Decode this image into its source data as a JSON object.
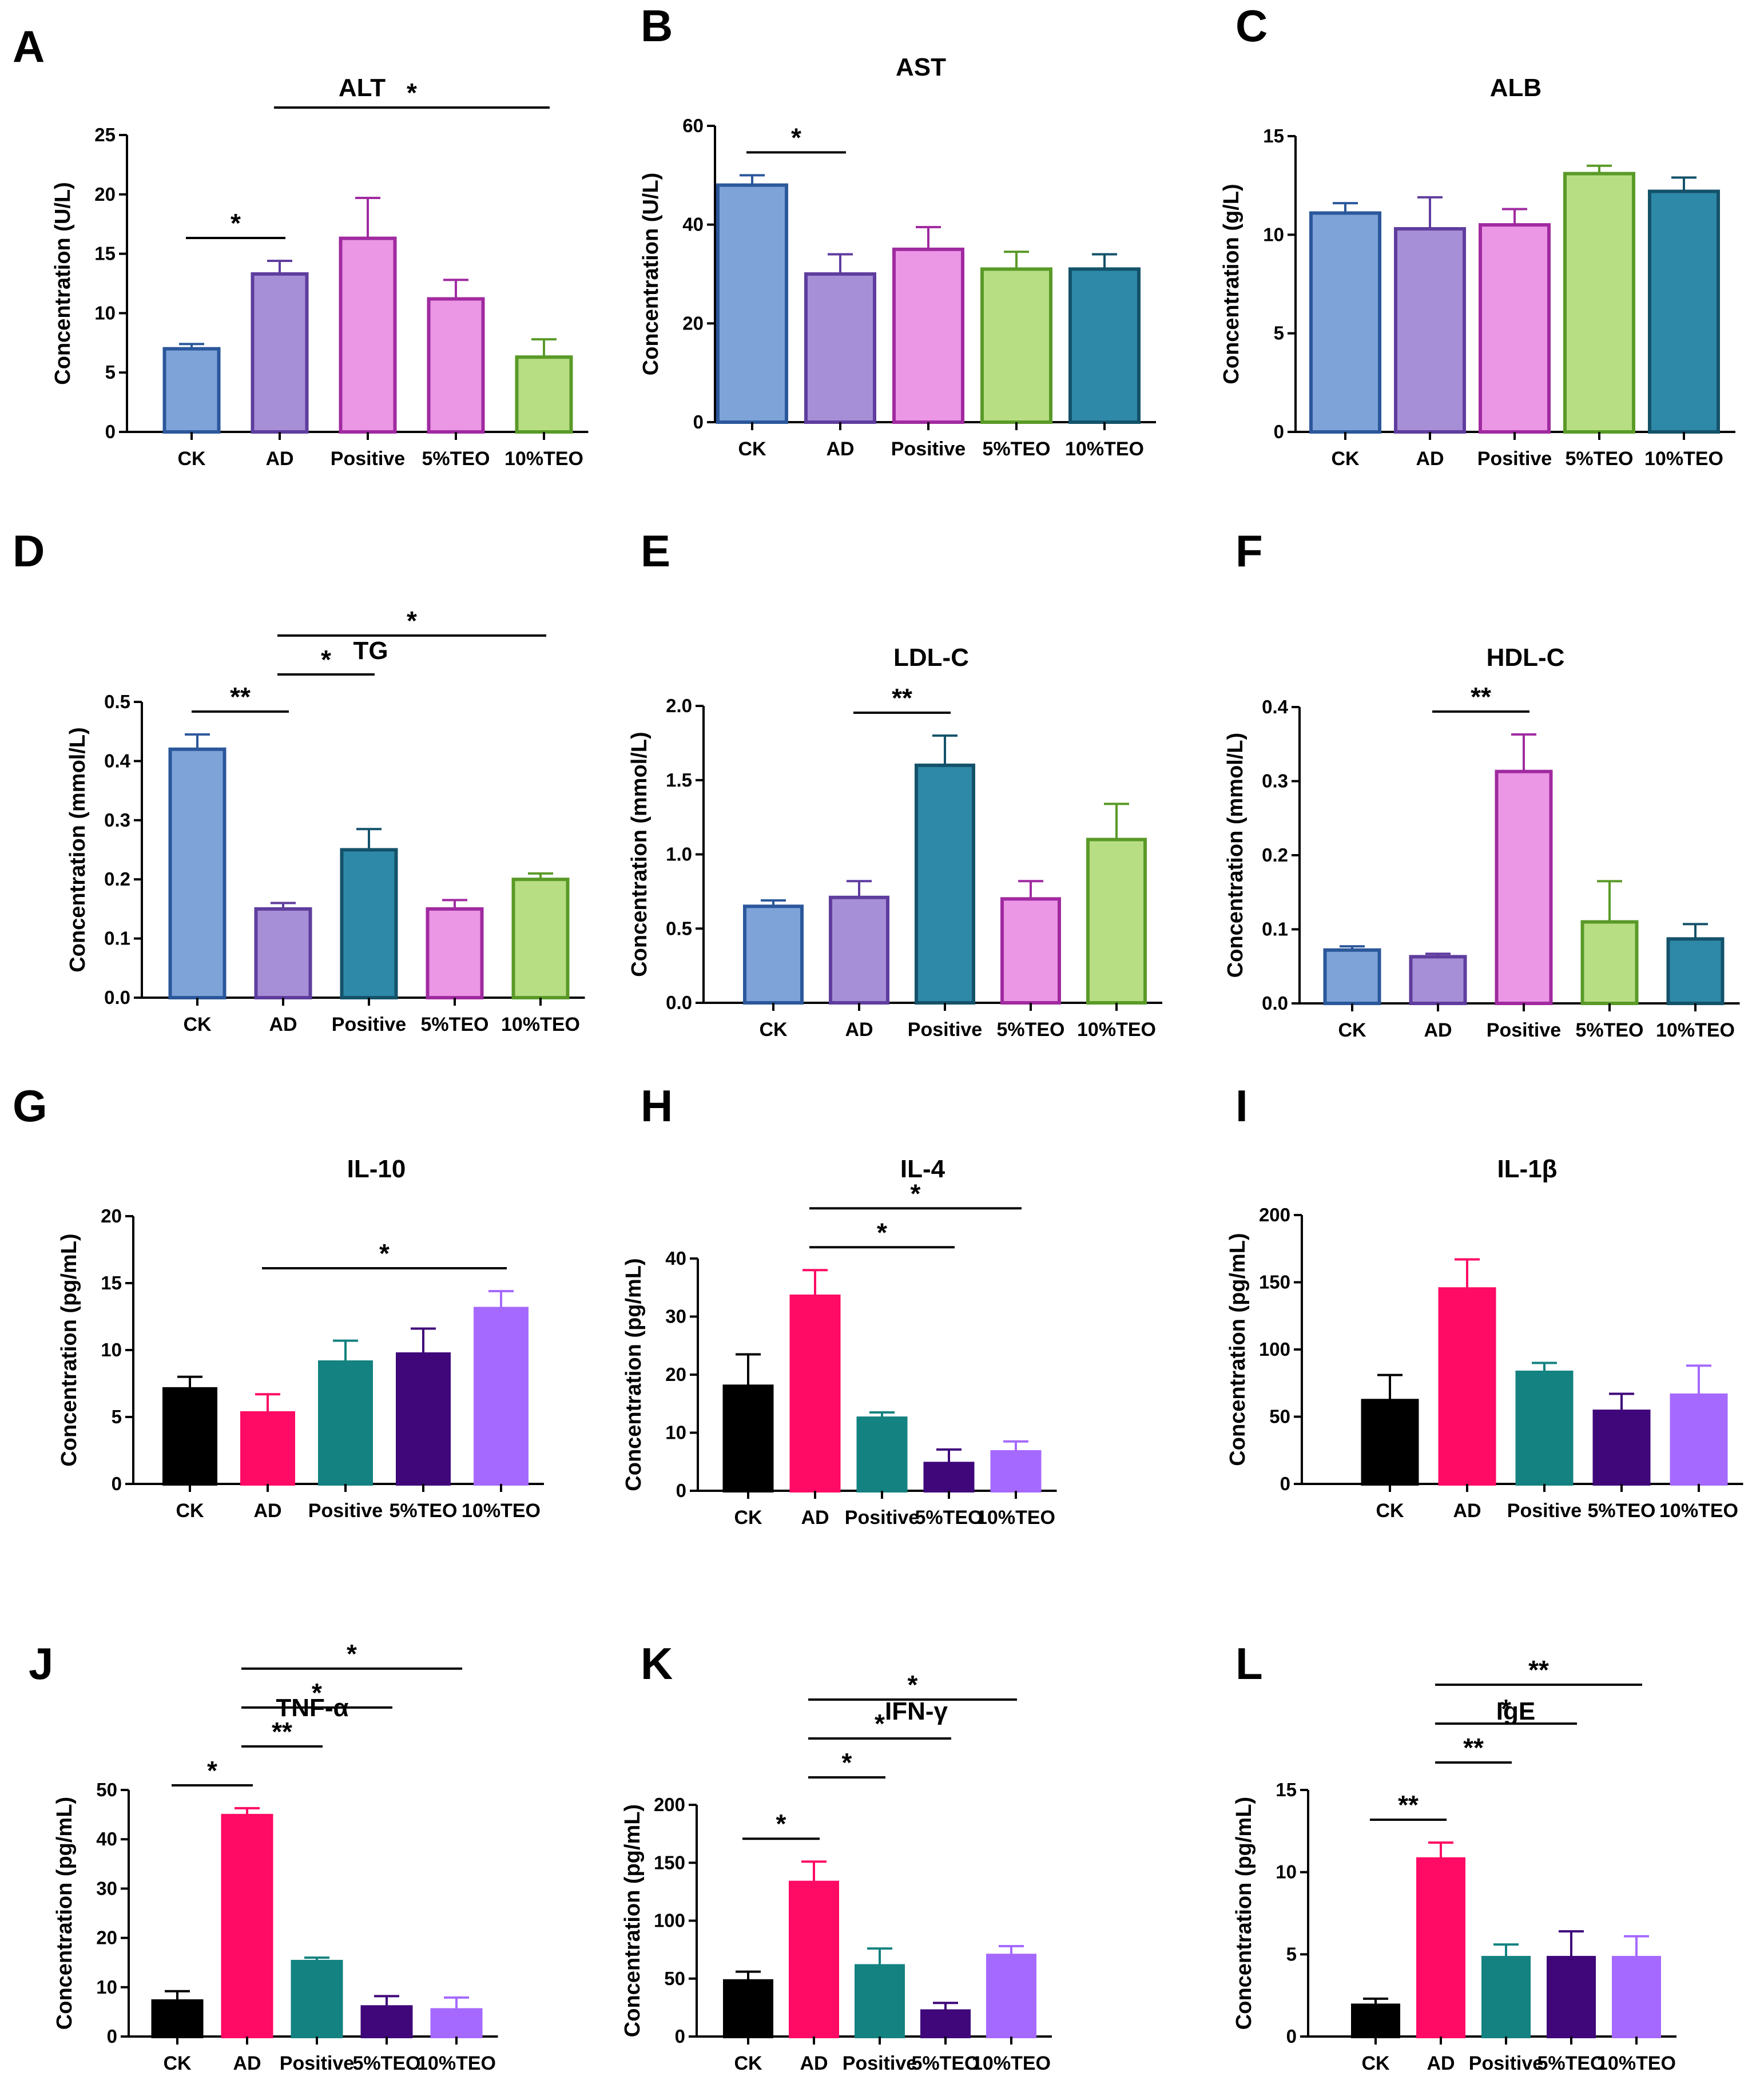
{
  "categories": [
    "CK",
    "AD",
    "Positive",
    "5%TEO",
    "10%TEO"
  ],
  "chart_data": [
    {
      "panel": "A",
      "type": "bar",
      "title": "ALT",
      "ylabel": "Concentration (U/L)",
      "ylim": [
        0,
        25
      ],
      "yticks": [
        0,
        5,
        10,
        15,
        20,
        25
      ],
      "categories": [
        "CK",
        "AD",
        "Positive",
        "5%TEO",
        "10%TEO"
      ],
      "values": [
        7.0,
        13.3,
        16.3,
        11.2,
        6.3
      ],
      "errors": [
        0.4,
        1.1,
        3.4,
        1.6,
        1.5
      ],
      "colors": [
        "#7ea3d9",
        "#a68fd6",
        "#ec96e6",
        "#ec96e6",
        "#b8de84"
      ],
      "strokes": [
        "#2b579b",
        "#5f3d9e",
        "#a02aa0",
        "#a02aa0",
        "#5a9a28"
      ],
      "significance": [
        {
          "from": 0,
          "to": 1,
          "label": "*"
        },
        {
          "from": 1,
          "to": 4,
          "label": "*"
        }
      ]
    },
    {
      "panel": "B",
      "type": "bar",
      "title": "AST",
      "ylabel": "Concentration (U/L)",
      "ylim": [
        0,
        60
      ],
      "yticks": [
        0,
        20,
        40,
        60
      ],
      "categories": [
        "CK",
        "AD",
        "Positive",
        "5%TEO",
        "10%TEO"
      ],
      "values": [
        48,
        30,
        35,
        31,
        31
      ],
      "errors": [
        2,
        4,
        4.5,
        3.5,
        3
      ],
      "colors": [
        "#7ea3d9",
        "#a68fd6",
        "#ec96e6",
        "#b8de84",
        "#2e89a8"
      ],
      "strokes": [
        "#2b579b",
        "#5f3d9e",
        "#a02aa0",
        "#5a9a28",
        "#14526a"
      ],
      "significance": [
        {
          "from": 0,
          "to": 1,
          "label": "*"
        }
      ]
    },
    {
      "panel": "C",
      "type": "bar",
      "title": "ALB",
      "ylabel": "Concentration (g/L)",
      "ylim": [
        0,
        15
      ],
      "yticks": [
        0,
        5,
        10,
        15
      ],
      "categories": [
        "CK",
        "AD",
        "Positive",
        "5%TEO",
        "10%TEO"
      ],
      "values": [
        11.1,
        10.3,
        10.5,
        13.1,
        12.2
      ],
      "errors": [
        0.5,
        1.6,
        0.8,
        0.4,
        0.7
      ],
      "colors": [
        "#7ea3d9",
        "#a68fd6",
        "#ec96e6",
        "#b8de84",
        "#2e89a8"
      ],
      "strokes": [
        "#2b579b",
        "#5f3d9e",
        "#a02aa0",
        "#5a9a28",
        "#14526a"
      ],
      "significance": []
    },
    {
      "panel": "D",
      "type": "bar",
      "title": "TG",
      "ylabel": "Concentration (mmol/L)",
      "ylim": [
        0,
        0.5
      ],
      "yticks": [
        "0.0",
        "0.1",
        "0.2",
        "0.3",
        "0.4",
        "0.5"
      ],
      "categories": [
        "CK",
        "AD",
        "Positive",
        "5%TEO",
        "10%TEO"
      ],
      "values": [
        0.42,
        0.15,
        0.25,
        0.15,
        0.2
      ],
      "errors": [
        0.025,
        0.01,
        0.035,
        0.015,
        0.01
      ],
      "colors": [
        "#7ea3d9",
        "#a68fd6",
        "#2e89a8",
        "#ec96e6",
        "#b8de84"
      ],
      "strokes": [
        "#2b579b",
        "#5f3d9e",
        "#14526a",
        "#a02aa0",
        "#5a9a28"
      ],
      "significance": [
        {
          "from": 0,
          "to": 1,
          "label": "**"
        },
        {
          "from": 1,
          "to": 4,
          "label": "*"
        },
        {
          "from": 1,
          "to": 2,
          "label": "*"
        }
      ]
    },
    {
      "panel": "E",
      "type": "bar",
      "title": "LDL-C",
      "ylabel": "Concentration (mmol/L)",
      "ylim": [
        0,
        2.0
      ],
      "yticks": [
        "0.0",
        "0.5",
        "1.0",
        "1.5",
        "2.0"
      ],
      "categories": [
        "CK",
        "AD",
        "Positive",
        "5%TEO",
        "10%TEO"
      ],
      "values": [
        0.65,
        0.71,
        1.6,
        0.7,
        1.1
      ],
      "errors": [
        0.04,
        0.11,
        0.2,
        0.12,
        0.24
      ],
      "colors": [
        "#7ea3d9",
        "#a68fd6",
        "#2e89a8",
        "#ec96e6",
        "#b8de84"
      ],
      "strokes": [
        "#2b579b",
        "#5f3d9e",
        "#14526a",
        "#a02aa0",
        "#5a9a28"
      ],
      "significance": [
        {
          "from": 1,
          "to": 2,
          "label": "**"
        }
      ]
    },
    {
      "panel": "F",
      "type": "bar",
      "title": "HDL-C",
      "ylabel": "Concentration (mmol/L)",
      "ylim": [
        0,
        0.4
      ],
      "yticks": [
        "0.0",
        "0.1",
        "0.2",
        "0.3",
        "0.4"
      ],
      "categories": [
        "CK",
        "AD",
        "Positive",
        "5%TEO",
        "10%TEO"
      ],
      "values": [
        0.072,
        0.063,
        0.313,
        0.11,
        0.087
      ],
      "errors": [
        0.005,
        0.004,
        0.05,
        0.055,
        0.02
      ],
      "colors": [
        "#7ea3d9",
        "#a68fd6",
        "#ec96e6",
        "#b8de84",
        "#2e89a8"
      ],
      "strokes": [
        "#2b579b",
        "#5f3d9e",
        "#a02aa0",
        "#5a9a28",
        "#14526a"
      ],
      "significance": [
        {
          "from": 1,
          "to": 2,
          "label": "**"
        }
      ]
    },
    {
      "panel": "G",
      "type": "bar",
      "title": "IL-10",
      "ylabel": "Concentration (pg/mL)",
      "ylim": [
        0,
        20
      ],
      "yticks": [
        0,
        5,
        10,
        15,
        20
      ],
      "categories": [
        "CK",
        "AD",
        "Positive",
        "5%TEO",
        "10%TEO"
      ],
      "values": [
        7.1,
        5.3,
        9.1,
        9.7,
        13.1
      ],
      "errors": [
        0.9,
        1.4,
        1.6,
        1.9,
        1.3
      ],
      "colors": [
        "#000000",
        "#ff0a64",
        "#138280",
        "#3f077a",
        "#a569ff"
      ],
      "strokes": [
        "#000000",
        "#ff0a64",
        "#138280",
        "#3f077a",
        "#a569ff"
      ],
      "significance": [
        {
          "from": 1,
          "to": 4,
          "label": "*"
        }
      ]
    },
    {
      "panel": "H",
      "type": "bar",
      "title": "IL-4",
      "ylabel": "Concentration (pg/mL)",
      "ylim": [
        0,
        40
      ],
      "yticks": [
        0,
        10,
        20,
        30,
        40
      ],
      "categories": [
        "CK",
        "AD",
        "Positive",
        "5%TEO",
        "10%TEO"
      ],
      "values": [
        18,
        33.5,
        12.5,
        4.7,
        6.7
      ],
      "errors": [
        5.5,
        4.5,
        1,
        2.4,
        1.8
      ],
      "colors": [
        "#000000",
        "#ff0a64",
        "#138280",
        "#3f077a",
        "#a569ff"
      ],
      "strokes": [
        "#000000",
        "#ff0a64",
        "#138280",
        "#3f077a",
        "#a569ff"
      ],
      "significance": [
        {
          "from": 1,
          "to": 3,
          "label": "*"
        },
        {
          "from": 1,
          "to": 4,
          "label": "*"
        }
      ]
    },
    {
      "panel": "I",
      "type": "bar",
      "title": "IL-1β",
      "ylabel": "Concentration (pg/mL)",
      "ylim": [
        0,
        200
      ],
      "yticks": [
        0,
        50,
        100,
        150,
        200
      ],
      "categories": [
        "CK",
        "AD",
        "Positive",
        "5%TEO",
        "10%TEO"
      ],
      "values": [
        62,
        145,
        83,
        54,
        66
      ],
      "errors": [
        19,
        22,
        7,
        13,
        22
      ],
      "colors": [
        "#000000",
        "#ff0a64",
        "#138280",
        "#3f077a",
        "#a569ff"
      ],
      "strokes": [
        "#000000",
        "#ff0a64",
        "#138280",
        "#3f077a",
        "#a569ff"
      ],
      "significance": []
    },
    {
      "panel": "J",
      "type": "bar",
      "title": "TNF-α",
      "ylabel": "Concentration (pg/mL)",
      "ylim": [
        0,
        50
      ],
      "yticks": [
        0,
        10,
        20,
        30,
        40,
        50
      ],
      "categories": [
        "CK",
        "AD",
        "Positive",
        "5%TEO",
        "10%TEO"
      ],
      "values": [
        7.2,
        44.8,
        15.2,
        6.0,
        5.4
      ],
      "errors": [
        2,
        1.5,
        0.8,
        2.2,
        2.5
      ],
      "colors": [
        "#000000",
        "#ff0a64",
        "#138280",
        "#3f077a",
        "#a569ff"
      ],
      "strokes": [
        "#000000",
        "#ff0a64",
        "#138280",
        "#3f077a",
        "#a569ff"
      ],
      "significance": [
        {
          "from": 0,
          "to": 1,
          "label": "*"
        },
        {
          "from": 1,
          "to": 2,
          "label": "**"
        },
        {
          "from": 1,
          "to": 3,
          "label": "*"
        },
        {
          "from": 1,
          "to": 4,
          "label": "*"
        }
      ]
    },
    {
      "panel": "K",
      "type": "bar",
      "title": "IFN-γ",
      "ylabel": "Concentration (pg/mL)",
      "ylim": [
        0,
        200
      ],
      "yticks": [
        0,
        50,
        100,
        150,
        200
      ],
      "categories": [
        "CK",
        "AD",
        "Positive",
        "5%TEO",
        "10%TEO"
      ],
      "values": [
        48,
        133,
        61,
        22,
        70
      ],
      "errors": [
        8,
        18,
        15,
        7,
        8
      ],
      "colors": [
        "#000000",
        "#ff0a64",
        "#138280",
        "#3f077a",
        "#a569ff"
      ],
      "strokes": [
        "#000000",
        "#ff0a64",
        "#138280",
        "#3f077a",
        "#a569ff"
      ],
      "significance": [
        {
          "from": 0,
          "to": 1,
          "label": "*"
        },
        {
          "from": 1,
          "to": 2,
          "label": "*"
        },
        {
          "from": 1,
          "to": 3,
          "label": "*"
        },
        {
          "from": 1,
          "to": 4,
          "label": "*"
        }
      ]
    },
    {
      "panel": "L",
      "type": "bar",
      "title": "IgE",
      "ylabel": "Concentration (pg/mL)",
      "ylim": [
        0,
        15
      ],
      "yticks": [
        0,
        5,
        10,
        15
      ],
      "categories": [
        "CK",
        "AD",
        "Positive",
        "5%TEO",
        "10%TEO"
      ],
      "values": [
        1.9,
        10.8,
        4.8,
        4.8,
        4.8
      ],
      "errors": [
        0.4,
        1.0,
        0.8,
        1.6,
        1.3
      ],
      "colors": [
        "#000000",
        "#ff0a64",
        "#138280",
        "#3f077a",
        "#a569ff"
      ],
      "strokes": [
        "#000000",
        "#ff0a64",
        "#138280",
        "#3f077a",
        "#a569ff"
      ],
      "significance": [
        {
          "from": 0,
          "to": 1,
          "label": "**"
        },
        {
          "from": 1,
          "to": 2,
          "label": "**"
        },
        {
          "from": 1,
          "to": 3,
          "label": "*"
        },
        {
          "from": 1,
          "to": 4,
          "label": "**"
        }
      ]
    }
  ]
}
